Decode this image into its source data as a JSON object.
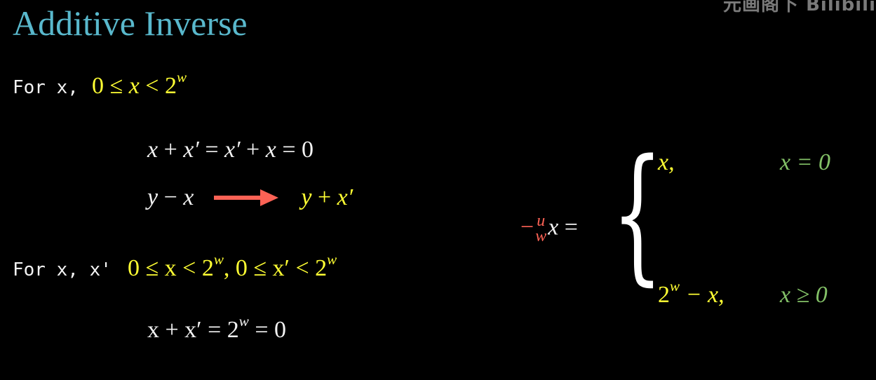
{
  "title": "Additive Inverse",
  "watermark": "元画阁下 Bilibili",
  "line1": {
    "label": "For x,",
    "zero": "0",
    "le": "≤",
    "x": "x",
    "lt": "<",
    "two": "2",
    "w": "w"
  },
  "eq1": {
    "text_a": "x",
    "plus": "+",
    "text_b": "x′",
    "eq": "=",
    "text_c": "x′",
    "text_d": "x",
    "zero": "0"
  },
  "eq2": {
    "y": "y",
    "minus": "−",
    "x": "x",
    "rhs_y": "y",
    "rhs_plus": "+",
    "rhs_x": "x′"
  },
  "line2": {
    "label": "For x, x'",
    "cond": "0 ≤ x < 2",
    "w1": "w",
    "comma": ",",
    "cond2": "0 ≤ x′ < 2",
    "w2": "w"
  },
  "eq3": {
    "lhs": "x + x′ = 2",
    "w": "w",
    "rhs": "= 0"
  },
  "piecewise": {
    "neg": "−",
    "u": "u",
    "w": "w",
    "x": "x",
    "eq": "=",
    "case1_value": "x,",
    "case1_cond": "x = 0",
    "case2_value_base": "2",
    "case2_value_exp": "w",
    "case2_value_rest": "− x,",
    "case2_cond": "x ≥ 0"
  },
  "colors": {
    "background": "#000000",
    "title": "#59b8cc",
    "yellow": "#ffff33",
    "green": "#83c167",
    "red": "#fc6255"
  }
}
